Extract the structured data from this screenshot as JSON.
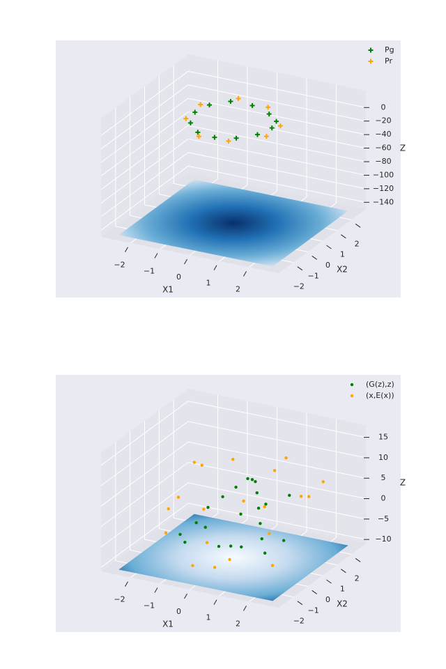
{
  "chart_data": [
    {
      "type": "scatter3d",
      "xlabel": "X1",
      "ylabel": "X2",
      "zlabel": "Z",
      "xlim": [
        -3,
        3
      ],
      "ylim": [
        -3,
        3
      ],
      "zlim": [
        -150,
        25
      ],
      "xticks": [
        {
          "value": -2,
          "label": "−2"
        },
        {
          "value": -1,
          "label": "−1"
        },
        0,
        1,
        2
      ],
      "yticks": [
        {
          "value": -2,
          "label": "−2"
        },
        {
          "value": -1,
          "label": "−1"
        },
        0,
        1,
        2
      ],
      "zticks": [
        0,
        {
          "value": -20,
          "label": "−20"
        },
        {
          "value": -40,
          "label": "−40"
        },
        {
          "value": -60,
          "label": "−60"
        },
        {
          "value": -80,
          "label": "−80"
        },
        {
          "value": -100,
          "label": "−100"
        },
        {
          "value": -120,
          "label": "−120"
        },
        {
          "value": -140,
          "label": "−140"
        }
      ],
      "legend": "upper right",
      "series": [
        {
          "name": "Pg",
          "color": "#008000",
          "marker": "plus",
          "x": [
            1.3,
            1.13,
            0.65,
            0,
            -0.65,
            -1.13,
            -1.3,
            -1.13,
            -0.65,
            0,
            0.65,
            1.13
          ],
          "y": [
            0,
            0.65,
            1.13,
            1.3,
            1.13,
            0.65,
            0,
            -0.65,
            -1.13,
            -1.3,
            -1.13,
            -0.65
          ],
          "z": [
            2,
            0,
            -1,
            3,
            6,
            4,
            2,
            -2,
            -4,
            -3,
            -1,
            1
          ]
        },
        {
          "name": "Pr",
          "color": "#ffa500",
          "marker": "plus",
          "x": [
            1.4,
            0.5,
            -0.5,
            -1.36,
            -1.36,
            -0.5,
            0.5,
            1.36
          ],
          "y": [
            0.38,
            1.36,
            1.36,
            0.5,
            -0.5,
            -1.36,
            -1.36,
            -0.5
          ],
          "z": [
            0,
            4,
            8,
            5,
            0,
            -5,
            -3,
            -2
          ]
        }
      ]
    },
    {
      "type": "scatter3d",
      "xlabel": "X1",
      "ylabel": "X2",
      "zlabel": "Z",
      "xlim": [
        -3,
        3
      ],
      "ylim": [
        -3,
        3
      ],
      "zlim": [
        -11,
        18
      ],
      "xticks": [
        {
          "value": -2,
          "label": "−2"
        },
        {
          "value": -1,
          "label": "−1"
        },
        0,
        1,
        2
      ],
      "yticks": [
        {
          "value": -2,
          "label": "−2"
        },
        {
          "value": -1,
          "label": "−1"
        },
        0,
        1,
        2
      ],
      "zticks": [
        15,
        10,
        5,
        0,
        {
          "value": -5,
          "label": "−5"
        },
        {
          "value": -10,
          "label": "−10"
        }
      ],
      "legend": "upper right",
      "series": [
        {
          "name": "(G(z),z)",
          "color": "#008000",
          "marker": "dot",
          "x": [
            -1.5,
            -1.3,
            -1.0,
            -0.7,
            -0.4,
            -0.1,
            0.2,
            0.5,
            0.8,
            1.1,
            1.4,
            1.7,
            -1.8,
            -0.2,
            0.4,
            1.0,
            -0.8,
            0.1,
            0.7,
            1.3,
            -1.1,
            1.6
          ],
          "y": [
            0.5,
            0.9,
            1.3,
            1.6,
            1.8,
            1.5,
            1.1,
            0.6,
            0.1,
            -0.4,
            -0.9,
            -1.3,
            0.0,
            -0.6,
            -1.0,
            -1.5,
            -0.3,
            0.3,
            0.8,
            1.2,
            -1.1,
            0.2
          ],
          "z": [
            -6,
            -3,
            -1,
            1,
            3,
            4,
            5,
            4,
            2,
            0,
            -2,
            -4,
            -8,
            -7,
            -5,
            -3,
            -4,
            -1,
            1,
            3,
            -6,
            -5
          ]
        },
        {
          "name": "(x,E(x))",
          "color": "#ffa500",
          "marker": "dot",
          "x": [
            -2.4,
            -1.8,
            -1.2,
            -0.5,
            0.3,
            1.0,
            1.7,
            2.3,
            -2.0,
            -0.9,
            0.6,
            1.5,
            2.2,
            -1.5,
            0.0,
            1.2,
            -0.2,
            2.0,
            -2.3,
            0.9
          ],
          "y": [
            2.2,
            1.5,
            0.4,
            -0.8,
            -1.9,
            -2.3,
            -1.0,
            0.5,
            -0.4,
            1.8,
            2.4,
            1.6,
            -1.8,
            -1.6,
            0.7,
            -0.3,
            -2.4,
            2.1,
            0.9,
            1.0
          ],
          "z": [
            3,
            5,
            -2,
            -6,
            -8,
            -4,
            0,
            6,
            -1,
            7,
            8,
            2,
            -5,
            -3,
            1,
            4,
            -7,
            5,
            -2,
            9
          ]
        }
      ]
    }
  ]
}
